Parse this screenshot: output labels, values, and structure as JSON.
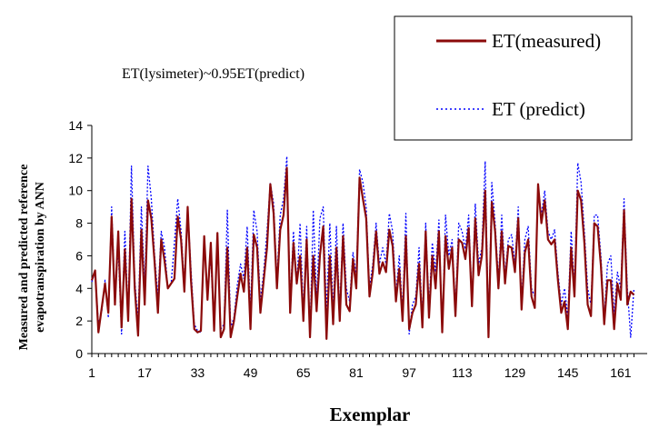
{
  "chart_data": {
    "type": "line",
    "xlabel": "Exemplar",
    "ylabel": [
      "Measured and predicted reference",
      "evapotranspiration by ANN"
    ],
    "annotation": "ET(lysimeter)~0.95ET(predict)",
    "ylim": [
      0,
      14
    ],
    "yticks": [
      0,
      2,
      4,
      6,
      8,
      10,
      12,
      14
    ],
    "xlim": [
      1,
      169
    ],
    "xtick_labels": [
      "1",
      "17",
      "33",
      "49",
      "65",
      "81",
      "97",
      "113",
      "129",
      "145",
      "161"
    ],
    "grid": false,
    "legend_position": "top-right",
    "series": [
      {
        "name": "ET(measured)",
        "color": "#8b0a0a",
        "style": "solid",
        "values": [
          4.5,
          5.1,
          1.3,
          2.8,
          4.3,
          2.5,
          8.4,
          3.0,
          7.5,
          1.6,
          6.4,
          2.0,
          9.5,
          4.0,
          1.1,
          7.6,
          3.0,
          9.4,
          8.3,
          5.6,
          2.5,
          7.0,
          5.7,
          4.0,
          4.3,
          4.6,
          8.4,
          7.0,
          3.8,
          9.0,
          4.5,
          1.5,
          1.3,
          1.4,
          7.2,
          3.3,
          6.8,
          1.4,
          7.4,
          1.0,
          1.5,
          6.5,
          1.0,
          2.0,
          3.5,
          4.9,
          3.8,
          6.5,
          1.5,
          7.3,
          6.5,
          2.5,
          4.5,
          6.5,
          10.4,
          8.6,
          4.0,
          7.6,
          8.5,
          11.4,
          2.5,
          6.8,
          4.3,
          6.0,
          2.0,
          7.0,
          1.0,
          6.0,
          2.6,
          6.0,
          7.8,
          0.9,
          6.0,
          1.8,
          6.5,
          2.0,
          7.2,
          3.0,
          2.6,
          5.8,
          4.0,
          10.8,
          9.5,
          8.3,
          3.5,
          5.0,
          7.5,
          4.9,
          5.6,
          5.0,
          7.6,
          6.6,
          3.2,
          5.2,
          2.0,
          7.2,
          1.5,
          2.5,
          3.0,
          5.5,
          1.6,
          7.5,
          2.2,
          6.0,
          4.0,
          7.5,
          1.3,
          7.2,
          5.2,
          6.5,
          2.3,
          7.0,
          6.8,
          5.8,
          7.7,
          2.9,
          8.3,
          4.8,
          6.0,
          10.0,
          1.0,
          9.3,
          7.5,
          4.0,
          7.5,
          4.3,
          6.6,
          6.5,
          5.0,
          8.3,
          2.7,
          6.2,
          7.0,
          3.5,
          2.8,
          10.4,
          8.0,
          9.4,
          7.0,
          6.7,
          7.0,
          4.5,
          2.5,
          3.2,
          1.5,
          6.5,
          3.5,
          10.0,
          9.4,
          6.8,
          3.0,
          2.3,
          8.0,
          7.8,
          5.4,
          1.8,
          4.5,
          4.5,
          1.5,
          4.3,
          3.3,
          8.8,
          3.0,
          3.8,
          3.6
        ]
      },
      {
        "name": "ET (predict)",
        "color": "#0000ff",
        "style": "dotted",
        "values": [
          4.4,
          5.0,
          1.8,
          2.6,
          4.5,
          2.2,
          9.0,
          3.4,
          6.5,
          1.2,
          7.5,
          2.4,
          11.5,
          4.5,
          2.0,
          9.0,
          4.0,
          11.5,
          9.5,
          6.0,
          3.5,
          7.5,
          6.5,
          4.0,
          4.3,
          6.8,
          9.5,
          7.5,
          4.2,
          9.0,
          5.2,
          1.8,
          1.4,
          1.3,
          6.8,
          3.8,
          6.0,
          1.4,
          7.0,
          1.5,
          1.8,
          8.8,
          1.6,
          2.2,
          4.2,
          5.5,
          4.6,
          7.8,
          2.5,
          8.8,
          7.5,
          3.2,
          5.0,
          7.5,
          10.5,
          9.2,
          4.5,
          8.5,
          9.5,
          12.1,
          3.0,
          7.5,
          4.2,
          8.0,
          2.5,
          7.8,
          1.2,
          8.8,
          3.2,
          8.3,
          9.0,
          2.5,
          8.0,
          2.6,
          7.8,
          2.5,
          8.0,
          4.0,
          3.2,
          6.2,
          4.8,
          11.3,
          10.5,
          9.0,
          4.0,
          5.5,
          8.0,
          5.5,
          6.5,
          5.5,
          8.6,
          7.5,
          3.6,
          6.0,
          2.5,
          8.6,
          1.2,
          3.0,
          3.5,
          6.5,
          2.0,
          8.0,
          2.8,
          6.8,
          5.0,
          8.2,
          1.3,
          8.5,
          6.0,
          7.0,
          2.8,
          8.0,
          7.5,
          6.4,
          8.5,
          3.2,
          9.2,
          5.5,
          6.5,
          11.8,
          1.4,
          10.5,
          8.0,
          4.5,
          8.5,
          4.8,
          7.0,
          7.3,
          5.5,
          9.0,
          3.2,
          7.0,
          7.8,
          4.0,
          3.5,
          10.2,
          8.5,
          10.0,
          7.5,
          7.0,
          7.6,
          5.0,
          3.0,
          4.0,
          2.2,
          7.5,
          4.0,
          11.7,
          10.5,
          7.5,
          4.0,
          3.0,
          8.5,
          8.5,
          6.0,
          2.2,
          5.5,
          6.0,
          2.4,
          5.0,
          4.0,
          9.5,
          4.0,
          1.0,
          4.0
        ]
      }
    ]
  }
}
